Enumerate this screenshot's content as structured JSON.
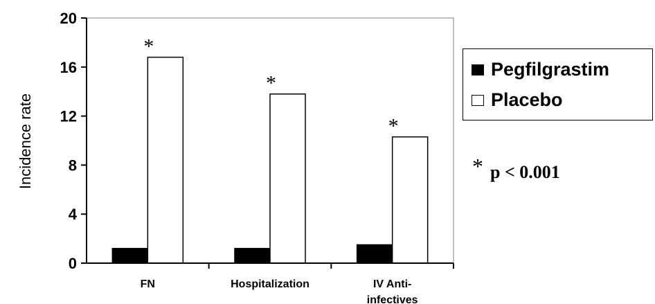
{
  "chart_data": {
    "type": "bar",
    "ylabel": "Incidence rate",
    "ylim": [
      0,
      20
    ],
    "yticks": [
      "0",
      "4",
      "8",
      "12",
      "16",
      "20"
    ],
    "categories": [
      {
        "lines": [
          "FN"
        ]
      },
      {
        "lines": [
          "Hospitalization"
        ]
      },
      {
        "lines": [
          "IV Anti-",
          "infectives"
        ]
      }
    ],
    "series": [
      {
        "name": "Pegfilgrastim",
        "color": "#000000",
        "values": [
          1.2,
          1.2,
          1.5
        ]
      },
      {
        "name": "Placebo",
        "color": "#ffffff",
        "values": [
          16.8,
          13.8,
          10.3
        ]
      }
    ],
    "significance_marker": "*",
    "legend": {
      "position": "right",
      "items": [
        "Pegfilgrastim",
        "Placebo"
      ]
    },
    "annotation": {
      "marker": "*",
      "text": "p < 0.001"
    }
  }
}
